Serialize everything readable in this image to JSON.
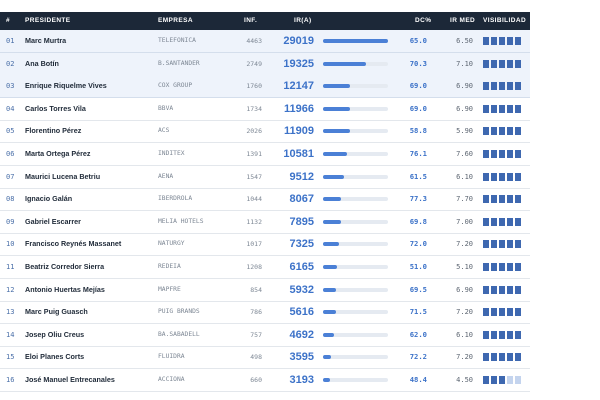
{
  "table": {
    "header": [
      "#",
      "PRESIDENTE",
      "EMPRESA",
      "INF.",
      "IR(A)",
      "DC%",
      "IR MED",
      "VISIBILIDAD"
    ],
    "rows": [
      [
        "01",
        "Marc Murtra",
        "TELEFONICA",
        4463,
        29019,
        "65.0",
        "6.50",
        5
      ],
      [
        "02",
        "Ana Botín",
        "B.SANTANDER",
        2749,
        19325,
        "70.3",
        "7.10",
        5
      ],
      [
        "03",
        "Enrique Riquelme Vives",
        "COX GROUP",
        1760,
        12147,
        "69.0",
        "6.90",
        5
      ],
      [
        "04",
        "Carlos Torres Vila",
        "BBVA",
        1734,
        11966,
        "69.0",
        "6.90",
        5
      ],
      [
        "05",
        "Florentino Pérez",
        "ACS",
        2026,
        11909,
        "58.8",
        "5.90",
        5
      ],
      [
        "06",
        "Marta Ortega Pérez",
        "INDITEX",
        1391,
        10581,
        "76.1",
        "7.60",
        5
      ],
      [
        "07",
        "Maurici Lucena Betriu",
        "AENA",
        1547,
        9512,
        "61.5",
        "6.10",
        5
      ],
      [
        "08",
        "Ignacio Galán",
        "IBERDROLA",
        1044,
        8067,
        "77.3",
        "7.70",
        5
      ],
      [
        "09",
        "Gabriel Escarrer",
        "MELIA HOTELS",
        1132,
        7895,
        "69.8",
        "7.00",
        5
      ],
      [
        "10",
        "Francisco Reynés Massanet",
        "NATURGY",
        1017,
        7325,
        "72.0",
        "7.20",
        5
      ],
      [
        "11",
        "Beatriz Corredor Sierra",
        "REDEIA",
        1208,
        6165,
        "51.0",
        "5.10",
        5
      ],
      [
        "12",
        "Antonio Huertas Mejías",
        "MAPFRE",
        854,
        5932,
        "69.5",
        "6.90",
        5
      ],
      [
        "13",
        "Marc Puig Guasch",
        "PUIG BRANDS",
        786,
        5616,
        "71.5",
        "7.20",
        5
      ],
      [
        "14",
        "Josep Oliu Creus",
        "BA.SABADELL",
        757,
        4692,
        "62.0",
        "6.10",
        5
      ],
      [
        "15",
        "Eloi Planes Corts",
        "FLUIDRA",
        498,
        3595,
        "72.2",
        "7.20",
        5
      ],
      [
        "16",
        "José Manuel Entrecanales",
        "ACCIONA",
        660,
        3193,
        "48.4",
        "4.50",
        3
      ]
    ]
  }
}
